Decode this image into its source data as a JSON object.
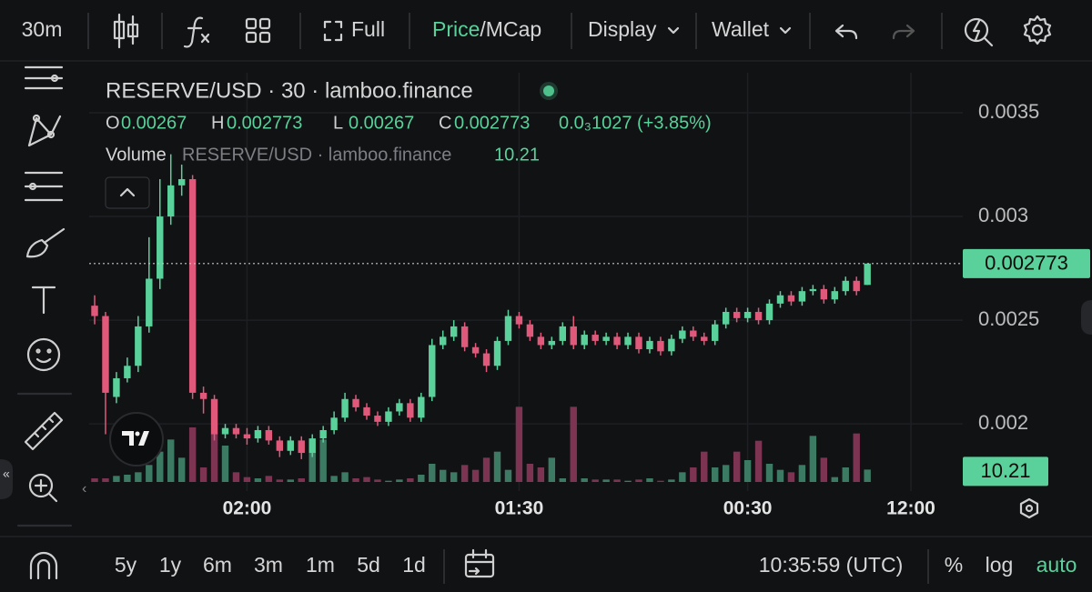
{
  "toolbar": {
    "interval": "30m",
    "full": "Full",
    "price": "Price",
    "mcap": "/MCap",
    "display": "Display",
    "wallet": "Wallet"
  },
  "chart_data": {
    "type": "candlestick",
    "title": "RESERVE/USD · 30 · lamboo.finance",
    "ohlc_letters": [
      "O",
      "H",
      "L",
      "C"
    ],
    "change": "0.0₃1027 (+3.85%)",
    "volume_label": "Volume",
    "volume_title": "RESERVE/USD · lamboo.finance",
    "up_color": "#5ad19a",
    "down_color": "#e0587a",
    "volume_up_color": "#3d7a63",
    "volume_down_color": "#7d3452",
    "ylim": [
      0.00172,
      0.003693
    ],
    "yticks": [
      0.002,
      0.0025,
      0.003,
      0.0035
    ],
    "volume_lim": [
      0,
      75
    ],
    "grid": true,
    "categories": [
      null,
      null,
      null,
      null,
      null,
      null,
      null,
      null,
      null,
      null,
      null,
      null,
      null,
      null,
      "02:00",
      null,
      null,
      null,
      null,
      null,
      null,
      null,
      null,
      null,
      null,
      null,
      null,
      null,
      null,
      null,
      null,
      null,
      null,
      null,
      null,
      null,
      null,
      null,
      null,
      "01:30",
      null,
      null,
      null,
      null,
      null,
      null,
      null,
      null,
      null,
      null,
      null,
      null,
      null,
      null,
      null,
      null,
      null,
      null,
      null,
      null,
      "00:30",
      null,
      null,
      null,
      null,
      null,
      null,
      null,
      null,
      null,
      null,
      null,
      null,
      null,
      null,
      "12:00"
    ],
    "open": [
      0.00257,
      0.00252,
      0.00213,
      0.00222,
      0.00228,
      0.00247,
      0.0027,
      0.003,
      0.00315,
      0.00318,
      0.00215,
      0.00212,
      0.00195,
      0.00198,
      0.00195,
      0.00193,
      0.00197,
      0.00192,
      0.00187,
      0.00192,
      0.00186,
      0.00193,
      0.00197,
      0.00203,
      0.00212,
      0.00208,
      0.00204,
      0.00201,
      0.00206,
      0.0021,
      0.00203,
      0.00213,
      0.00238,
      0.00242,
      0.00247,
      0.00237,
      0.00234,
      0.00228,
      0.0024,
      0.00252,
      0.00248,
      0.00242,
      0.00238,
      0.0024,
      0.00247,
      0.00238,
      0.00243,
      0.0024,
      0.00242,
      0.00238,
      0.00242,
      0.00236,
      0.0024,
      0.00235,
      0.00241,
      0.00245,
      0.00242,
      0.0024,
      0.00248,
      0.00254,
      0.00251,
      0.00254,
      0.0025,
      0.00258,
      0.00262,
      0.00259,
      0.00264,
      0.00265,
      0.0026,
      0.00264,
      0.00269,
      0.00267,
      null,
      null,
      null,
      null
    ],
    "high": [
      0.00262,
      0.00254,
      0.00225,
      0.00232,
      0.00252,
      0.0029,
      0.00318,
      0.0033,
      0.00325,
      0.0032,
      0.00218,
      0.00214,
      0.002,
      0.002,
      0.00198,
      0.00199,
      0.00199,
      0.00194,
      0.00194,
      0.00194,
      0.00195,
      0.00199,
      0.00206,
      0.00215,
      0.00214,
      0.0021,
      0.00206,
      0.00208,
      0.00212,
      0.00212,
      0.00215,
      0.00241,
      0.00245,
      0.0025,
      0.00249,
      0.00239,
      0.00236,
      0.00242,
      0.00255,
      0.00254,
      0.0025,
      0.00244,
      0.00242,
      0.00249,
      0.00252,
      0.00245,
      0.00245,
      0.00244,
      0.00244,
      0.00244,
      0.00244,
      0.00242,
      0.00242,
      0.00243,
      0.00247,
      0.00247,
      0.00244,
      0.0025,
      0.00256,
      0.00256,
      0.00256,
      0.00256,
      0.0026,
      0.00264,
      0.00264,
      0.00266,
      0.00267,
      0.00267,
      0.00266,
      0.00271,
      0.00271,
      0.002773,
      null,
      null,
      null,
      null
    ],
    "low": [
      0.00248,
      0.00195,
      0.0021,
      0.0022,
      0.00225,
      0.00244,
      0.00265,
      0.00296,
      0.0031,
      0.00212,
      0.00205,
      0.00192,
      0.00193,
      0.00193,
      0.0019,
      0.00191,
      0.0019,
      0.00184,
      0.00185,
      0.00183,
      0.00184,
      0.00191,
      0.00195,
      0.00201,
      0.00206,
      0.00202,
      0.00199,
      0.00199,
      0.00204,
      0.00201,
      0.00201,
      0.00211,
      0.00236,
      0.0024,
      0.00235,
      0.00232,
      0.00225,
      0.00226,
      0.00238,
      0.00246,
      0.0024,
      0.00236,
      0.00236,
      0.00238,
      0.00236,
      0.00236,
      0.00238,
      0.00238,
      0.00236,
      0.00236,
      0.00234,
      0.00234,
      0.00233,
      0.00233,
      0.00239,
      0.0024,
      0.00238,
      0.00238,
      0.00246,
      0.00249,
      0.00249,
      0.00248,
      0.00248,
      0.00256,
      0.00257,
      0.00257,
      0.00262,
      0.00258,
      0.00258,
      0.00262,
      0.00262,
      0.00267,
      null,
      null,
      null,
      null
    ],
    "close": [
      0.00252,
      0.00215,
      0.00222,
      0.00228,
      0.00247,
      0.0027,
      0.003,
      0.00315,
      0.00318,
      0.00215,
      0.00212,
      0.00195,
      0.00198,
      0.00195,
      0.00193,
      0.00197,
      0.00192,
      0.00187,
      0.00192,
      0.00186,
      0.00193,
      0.00197,
      0.00203,
      0.00212,
      0.00208,
      0.00204,
      0.00201,
      0.00206,
      0.0021,
      0.00203,
      0.00213,
      0.00238,
      0.00242,
      0.00247,
      0.00237,
      0.00234,
      0.00228,
      0.0024,
      0.00252,
      0.00248,
      0.00242,
      0.00238,
      0.0024,
      0.00247,
      0.00238,
      0.00243,
      0.0024,
      0.00242,
      0.00238,
      0.00242,
      0.00236,
      0.0024,
      0.00235,
      0.00241,
      0.00245,
      0.00242,
      0.0024,
      0.00248,
      0.00254,
      0.00251,
      0.00254,
      0.0025,
      0.00258,
      0.00262,
      0.00259,
      0.00264,
      0.00265,
      0.0026,
      0.00264,
      0.00269,
      0.00264,
      0.002773,
      null,
      null,
      null,
      null
    ],
    "volume": [
      3,
      3,
      5,
      6,
      8,
      14,
      25,
      35,
      20,
      45,
      12,
      40,
      30,
      8,
      4,
      3,
      5,
      2,
      2,
      3,
      25,
      35,
      5,
      8,
      3,
      4,
      2,
      1,
      2,
      3,
      6,
      15,
      10,
      8,
      14,
      10,
      20,
      25,
      10,
      62,
      15,
      12,
      20,
      3,
      62,
      3,
      2,
      2,
      2,
      1,
      2,
      3,
      1,
      2,
      8,
      12,
      25,
      12,
      14,
      25,
      18,
      34,
      15,
      10,
      8,
      14,
      38,
      20,
      4,
      12,
      40,
      10.21,
      null,
      null,
      null,
      null
    ]
  },
  "footer": {
    "ranges": [
      "5y",
      "1y",
      "6m",
      "3m",
      "1m",
      "5d",
      "1d"
    ],
    "time": "10:35:59 (UTC)",
    "percent": "%",
    "log": "log",
    "auto": "auto"
  }
}
